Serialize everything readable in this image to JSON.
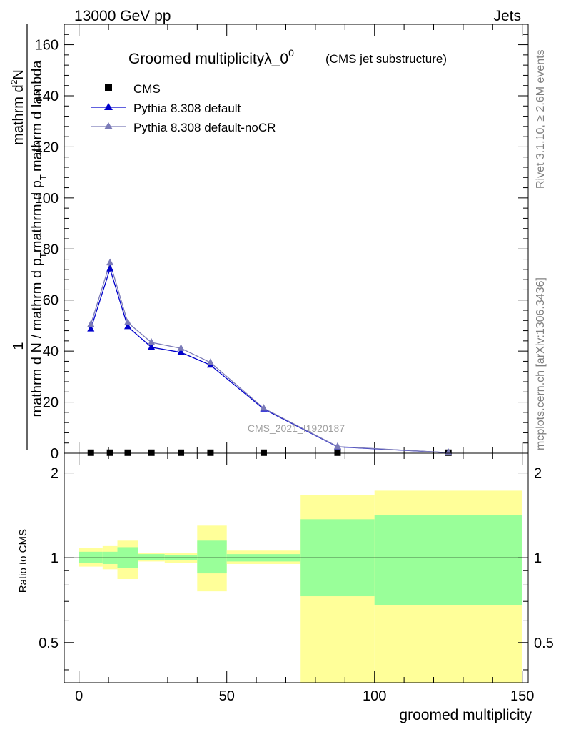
{
  "header": {
    "left": "13000 GeV pp",
    "right": "Jets"
  },
  "side_labels": {
    "rivet": "Rivet 3.1.10, ≥ 2.6M events",
    "mcplots": "mcplots.cern.ch [arXiv:1306.3436]"
  },
  "chart_data": [
    {
      "type": "line",
      "title": "Groomed multiplicityλ_0",
      "title_sup": "0",
      "subtitle": "(CMS jet substructure)",
      "ylabel_numerator": "1",
      "ylabel_denominator": "mathrm d N / mathrm d p",
      "ylabel_sub_t1": "T",
      "ylabel_mid": "mathrm d p",
      "ylabel_sub_t2": "T",
      "ylabel_tail": "mathrm d lambda",
      "ylabel_numer_tail": "mathrm d",
      "ylabel_numer_sup": "2",
      "ylabel_numer_N": "N",
      "watermark": "CMS_2021_I1920187",
      "xlim": [
        -5,
        152
      ],
      "ylim": [
        0,
        168
      ],
      "yticks": [
        0,
        20,
        40,
        60,
        80,
        100,
        120,
        140,
        160
      ],
      "legend_position": "top-left",
      "series": [
        {
          "name": "CMS",
          "marker": "square",
          "color": "#000000",
          "x": [
            4,
            10.5,
            16.5,
            24.5,
            34.5,
            44.5,
            62.5,
            87.5,
            125
          ],
          "y": [
            0.2,
            0.2,
            0.2,
            0.2,
            0.2,
            0.2,
            0.2,
            0.2,
            0.2
          ]
        },
        {
          "name": "Pythia 8.308 default",
          "marker": "triangle",
          "color": "#0000cc",
          "x": [
            4,
            10.5,
            16.5,
            24.5,
            34.5,
            44.5,
            62.5,
            87.5,
            125
          ],
          "y": [
            48.7,
            72.2,
            49.6,
            41.5,
            39.5,
            34.5,
            17.3,
            2.5,
            0.2
          ]
        },
        {
          "name": "Pythia 8.308 default-noCR",
          "marker": "triangle",
          "color": "#7b7bb8",
          "x": [
            4,
            10.5,
            16.5,
            24.5,
            34.5,
            44.5,
            62.5,
            87.5,
            125
          ],
          "y": [
            50.5,
            74.6,
            51.2,
            43.4,
            41.1,
            35.5,
            17.6,
            2.6,
            0.2
          ]
        }
      ]
    },
    {
      "type": "area",
      "ylabel": "Ratio to CMS",
      "xlabel": "groomed multiplicity",
      "xlim": [
        -5,
        152
      ],
      "ylim": [
        0.36,
        2.35
      ],
      "yscale": "log",
      "xticks": [
        0,
        50,
        100,
        150
      ],
      "yticks": [
        0.5,
        1,
        2
      ],
      "reference_line": 1,
      "bins": [
        {
          "x0": 0,
          "x1": 8,
          "band_outer": [
            0.93,
            1.08
          ],
          "band_inner": [
            0.96,
            1.05
          ]
        },
        {
          "x0": 8,
          "x1": 13,
          "band_outer": [
            0.91,
            1.1
          ],
          "band_inner": [
            0.95,
            1.05
          ]
        },
        {
          "x0": 13,
          "x1": 20,
          "band_outer": [
            0.84,
            1.15
          ],
          "band_inner": [
            0.92,
            1.09
          ]
        },
        {
          "x0": 20,
          "x1": 29,
          "band_outer": [
            0.97,
            1.04
          ],
          "band_inner": [
            0.98,
            1.03
          ]
        },
        {
          "x0": 29,
          "x1": 40,
          "band_outer": [
            0.96,
            1.04
          ],
          "band_inner": [
            0.98,
            1.02
          ]
        },
        {
          "x0": 40,
          "x1": 50,
          "band_outer": [
            0.76,
            1.3
          ],
          "band_inner": [
            0.88,
            1.15
          ]
        },
        {
          "x0": 50,
          "x1": 75,
          "band_outer": [
            0.95,
            1.06
          ],
          "band_inner": [
            0.97,
            1.03
          ]
        },
        {
          "x0": 75,
          "x1": 100,
          "band_outer": [
            0.36,
            1.67
          ],
          "band_inner": [
            0.73,
            1.37
          ]
        },
        {
          "x0": 100,
          "x1": 150,
          "band_outer": [
            0.36,
            1.73
          ],
          "band_inner": [
            0.68,
            1.42
          ]
        }
      ],
      "band_colors": {
        "outer": "#ffff99",
        "inner": "#99ff99"
      }
    }
  ]
}
